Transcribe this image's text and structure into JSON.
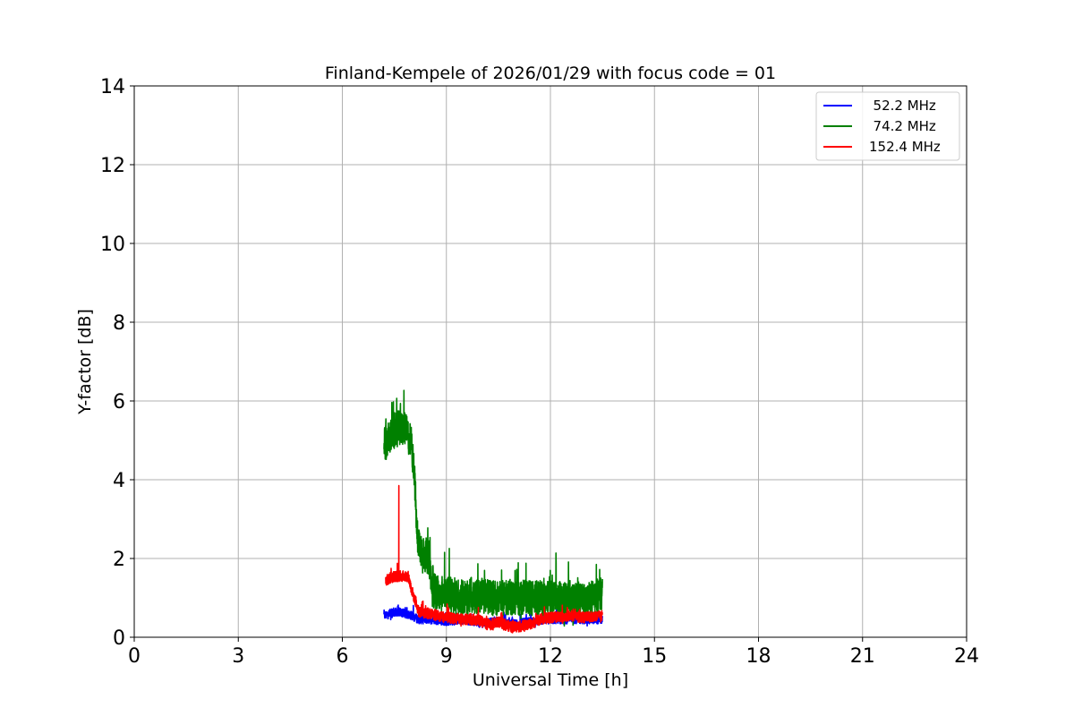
{
  "chart_data": {
    "type": "line",
    "title": "Finland-Kempele of 2026/01/29 with focus code = 01",
    "xlabel": "Universal Time [h]",
    "ylabel": "Y-factor [dB]",
    "xlim": [
      0,
      24
    ],
    "ylim": [
      0,
      14
    ],
    "xticks": [
      0,
      3,
      6,
      9,
      12,
      15,
      18,
      21,
      24
    ],
    "yticks": [
      0,
      2,
      4,
      6,
      8,
      10,
      12,
      14
    ],
    "grid": true,
    "legend_position": "top-right",
    "series": [
      {
        "name": "  52.2 MHz",
        "color": "#0000ff",
        "noise": 0.22,
        "points": [
          [
            7.2,
            0.55
          ],
          [
            7.4,
            0.6
          ],
          [
            7.6,
            0.65
          ],
          [
            7.8,
            0.6
          ],
          [
            8.0,
            0.55
          ],
          [
            8.2,
            0.45
          ],
          [
            8.6,
            0.45
          ],
          [
            9.0,
            0.4
          ],
          [
            9.5,
            0.45
          ],
          [
            10.0,
            0.35
          ],
          [
            10.5,
            0.4
          ],
          [
            11.0,
            0.35
          ],
          [
            11.5,
            0.4
          ],
          [
            12.0,
            0.45
          ],
          [
            12.5,
            0.45
          ],
          [
            13.0,
            0.45
          ],
          [
            13.5,
            0.45
          ]
        ]
      },
      {
        "name": "  74.2 MHz",
        "color": "#008000",
        "noise": 0.9,
        "points": [
          [
            7.2,
            4.9
          ],
          [
            7.4,
            5.1
          ],
          [
            7.6,
            5.3
          ],
          [
            7.8,
            5.3
          ],
          [
            8.0,
            4.9
          ],
          [
            8.1,
            3.8
          ],
          [
            8.15,
            2.6
          ],
          [
            8.3,
            2.2
          ],
          [
            8.5,
            2.0
          ],
          [
            8.6,
            1.2
          ],
          [
            9.0,
            1.1
          ],
          [
            9.5,
            1.0
          ],
          [
            10.0,
            1.05
          ],
          [
            10.5,
            1.0
          ],
          [
            11.0,
            1.0
          ],
          [
            11.5,
            1.0
          ],
          [
            12.0,
            1.0
          ],
          [
            12.5,
            0.95
          ],
          [
            13.0,
            0.9
          ],
          [
            13.5,
            1.1
          ]
        ]
      },
      {
        "name": "152.4 MHz",
        "color": "#ff0000",
        "noise": 0.28,
        "points": [
          [
            7.25,
            1.45
          ],
          [
            7.5,
            1.55
          ],
          [
            7.9,
            1.55
          ],
          [
            8.0,
            1.2
          ],
          [
            8.2,
            0.65
          ],
          [
            8.5,
            0.6
          ],
          [
            9.0,
            0.5
          ],
          [
            9.5,
            0.45
          ],
          [
            9.9,
            0.45
          ],
          [
            10.2,
            0.3
          ],
          [
            10.5,
            0.4
          ],
          [
            10.9,
            0.25
          ],
          [
            11.3,
            0.3
          ],
          [
            11.7,
            0.45
          ],
          [
            12.0,
            0.5
          ],
          [
            12.5,
            0.55
          ],
          [
            13.0,
            0.5
          ],
          [
            13.5,
            0.55
          ]
        ],
        "spike": {
          "x": 7.63,
          "y": 3.85
        }
      }
    ]
  }
}
